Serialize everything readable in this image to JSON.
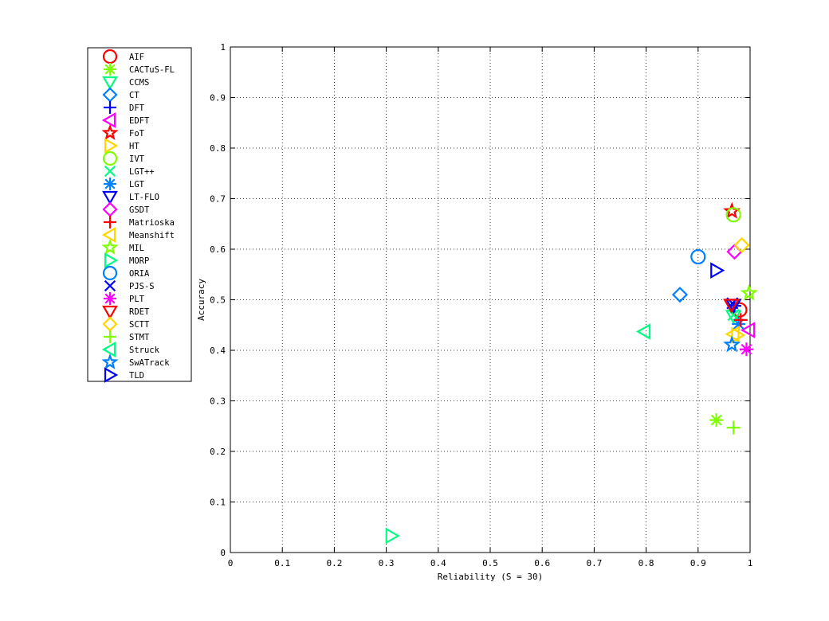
{
  "chart_data": {
    "type": "scatter",
    "xlabel": "Reliability (S = 30)",
    "ylabel": "Accuracy",
    "xlim": [
      0,
      1
    ],
    "ylim": [
      0,
      1
    ],
    "xticks": [
      "0",
      "0.1",
      "0.2",
      "0.3",
      "0.4",
      "0.5",
      "0.6",
      "0.7",
      "0.8",
      "0.9",
      "1"
    ],
    "yticks": [
      "0",
      "0.1",
      "0.2",
      "0.3",
      "0.4",
      "0.5",
      "0.6",
      "0.7",
      "0.8",
      "0.9",
      "1"
    ],
    "grid": true,
    "grid_style": "dotted",
    "legend_position": "outside-left",
    "series": [
      {
        "name": "AIF",
        "marker": "circle",
        "color": "#ff0000",
        "x": 0.98,
        "y": 0.48
      },
      {
        "name": "CACTuS-FL",
        "marker": "asterisk",
        "color": "#7fff00",
        "x": 0.935,
        "y": 0.262
      },
      {
        "name": "CCMS",
        "marker": "triangle-down",
        "color": "#00ff80",
        "x": 0.968,
        "y": 0.468
      },
      {
        "name": "CT",
        "marker": "diamond",
        "color": "#0080ff",
        "x": 0.865,
        "y": 0.51
      },
      {
        "name": "DFT",
        "marker": "plus",
        "color": "#0000ff",
        "x": 0.97,
        "y": 0.488
      },
      {
        "name": "EDFT",
        "marker": "triangle-left",
        "color": "#ff00ff",
        "x": 0.998,
        "y": 0.44
      },
      {
        "name": "FoT",
        "marker": "pentagram",
        "color": "#ff0000",
        "x": 0.965,
        "y": 0.675
      },
      {
        "name": "HT",
        "marker": "triangle-right",
        "color": "#ffd700",
        "x": 0.975,
        "y": 0.43
      },
      {
        "name": "IVT",
        "marker": "circle",
        "color": "#7fff00",
        "x": 0.968,
        "y": 0.668
      },
      {
        "name": "LGT++",
        "marker": "x",
        "color": "#00ff80",
        "x": 0.968,
        "y": 0.47
      },
      {
        "name": "LGT",
        "marker": "asterisk",
        "color": "#0080ff",
        "x": 0.978,
        "y": 0.452
      },
      {
        "name": "LT-FLO",
        "marker": "triangle-down",
        "color": "#0000ff",
        "x": 0.968,
        "y": 0.49
      },
      {
        "name": "GSDT",
        "marker": "diamond",
        "color": "#ff00ff",
        "x": 0.97,
        "y": 0.595
      },
      {
        "name": "Matrioska",
        "marker": "plus",
        "color": "#ff0000",
        "x": 0.982,
        "y": 0.46
      },
      {
        "name": "Meanshift",
        "marker": "triangle-left",
        "color": "#ffd700",
        "x": 0.968,
        "y": 0.432
      },
      {
        "name": "MIL",
        "marker": "pentagram",
        "color": "#7fff00",
        "x": 0.998,
        "y": 0.513
      },
      {
        "name": "MORP",
        "marker": "triangle-right",
        "color": "#00ff80",
        "x": 0.31,
        "y": 0.033
      },
      {
        "name": "ORIA",
        "marker": "circle",
        "color": "#0080ff",
        "x": 0.9,
        "y": 0.585
      },
      {
        "name": "PJS-S",
        "marker": "x",
        "color": "#0000ff",
        "x": 0.966,
        "y": 0.493
      },
      {
        "name": "PLT",
        "marker": "asterisk",
        "color": "#ff00ff",
        "x": 0.993,
        "y": 0.402
      },
      {
        "name": "RDET",
        "marker": "triangle-down",
        "color": "#ff0000",
        "x": 0.964,
        "y": 0.49
      },
      {
        "name": "SCTT",
        "marker": "diamond",
        "color": "#ffd700",
        "x": 0.984,
        "y": 0.608
      },
      {
        "name": "STMT",
        "marker": "plus",
        "color": "#7fff00",
        "x": 0.968,
        "y": 0.247
      },
      {
        "name": "Struck",
        "marker": "triangle-left",
        "color": "#00ff80",
        "x": 0.797,
        "y": 0.437
      },
      {
        "name": "SwATrack",
        "marker": "pentagram",
        "color": "#0080ff",
        "x": 0.965,
        "y": 0.411
      },
      {
        "name": "TLD",
        "marker": "triangle-right",
        "color": "#0000ff",
        "x": 0.935,
        "y": 0.558
      }
    ]
  }
}
